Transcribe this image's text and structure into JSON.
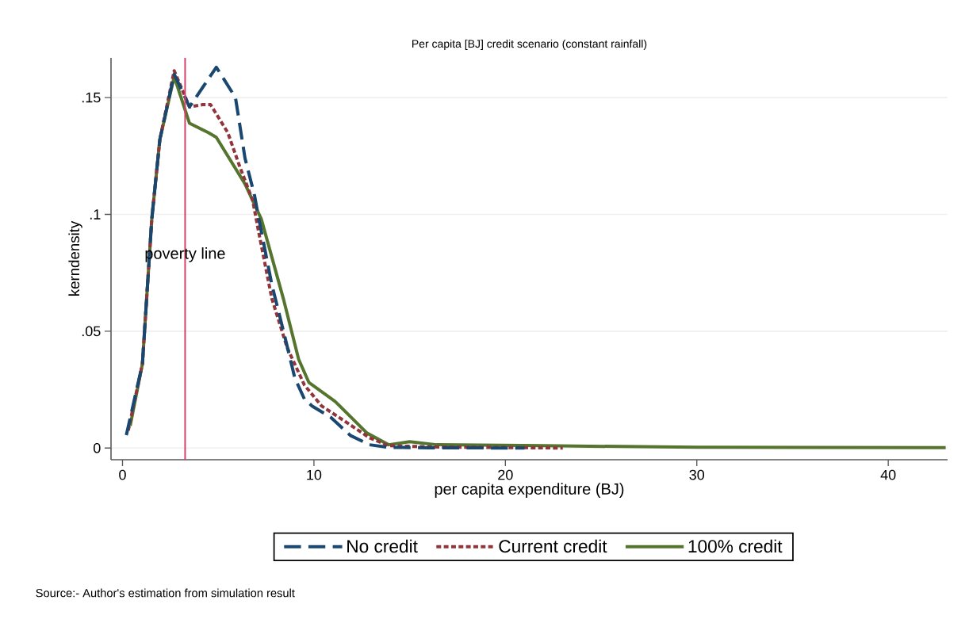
{
  "chart_data": {
    "type": "line",
    "title": "Per capita [BJ] credit scenario (constant rainfall)",
    "xlabel": "per capita expenditure (BJ)",
    "ylabel": "kerndensity",
    "xlim": [
      -0.6,
      43.1
    ],
    "ylim": [
      -0.005,
      0.167
    ],
    "xticks": [
      0,
      10,
      20,
      30,
      40
    ],
    "yticks": [
      0,
      {
        "value": 0.05,
        "label": ".05"
      },
      {
        "value": 0.1,
        "label": ".1"
      },
      {
        "value": 0.15,
        "label": ".15"
      }
    ],
    "grid": "y",
    "legend": "bottom",
    "ref_lines": [
      {
        "axis": "x",
        "value": 3.27,
        "label": "poverty line",
        "color": "#d6406a"
      }
    ],
    "annotations": [
      "Source:- Author's estimation from simulation result"
    ],
    "series": [
      {
        "name": "No credit",
        "color": "#1a476f",
        "line_style": "dashed",
        "x": [
          0.2,
          1.04,
          1.53,
          1.95,
          2.7,
          3.5,
          4.9,
          5.9,
          6.4,
          6.9,
          7.1,
          7.8,
          8.5,
          9.0,
          9.5,
          9.9,
          10.9,
          11.9,
          12.9,
          13.9,
          16,
          21
        ],
        "values": [
          0.0055,
          0.036,
          0.098,
          0.132,
          0.16,
          0.146,
          0.163,
          0.15,
          0.124,
          0.108,
          0.099,
          0.07,
          0.047,
          0.03,
          0.021,
          0.018,
          0.013,
          0.0054,
          0.0014,
          0.0003,
          0.0001,
          0
        ]
      },
      {
        "name": "Current credit",
        "color": "#90353b",
        "line_style": "dotted",
        "x": [
          0.3,
          1.04,
          1.53,
          1.95,
          2.7,
          3.5,
          4.2,
          4.6,
          5.5,
          6.1,
          6.8,
          7.1,
          7.8,
          8.6,
          9.5,
          10.4,
          11.7,
          12.9,
          13.9,
          16,
          23
        ],
        "values": [
          0.0075,
          0.036,
          0.098,
          0.132,
          0.1615,
          0.146,
          0.147,
          0.147,
          0.135,
          0.121,
          0.106,
          0.093,
          0.064,
          0.043,
          0.027,
          0.018,
          0.011,
          0.0044,
          0.001,
          0.0005,
          0
        ]
      },
      {
        "name": "100% credit",
        "color": "#55752f",
        "line_style": "solid",
        "x": [
          0.4,
          1.04,
          1.53,
          1.95,
          2.7,
          3.5,
          4.48,
          4.9,
          6.4,
          7.25,
          8.4,
          9.2,
          9.74,
          11.1,
          12.77,
          13.9,
          15.0,
          16.4,
          22,
          30,
          43
        ],
        "values": [
          0.0095,
          0.036,
          0.098,
          0.132,
          0.159,
          0.139,
          0.135,
          0.133,
          0.113,
          0.098,
          0.064,
          0.038,
          0.028,
          0.02,
          0.0064,
          0.0014,
          0.0027,
          0.0014,
          0.001,
          0.0003,
          0.0002
        ]
      }
    ]
  }
}
